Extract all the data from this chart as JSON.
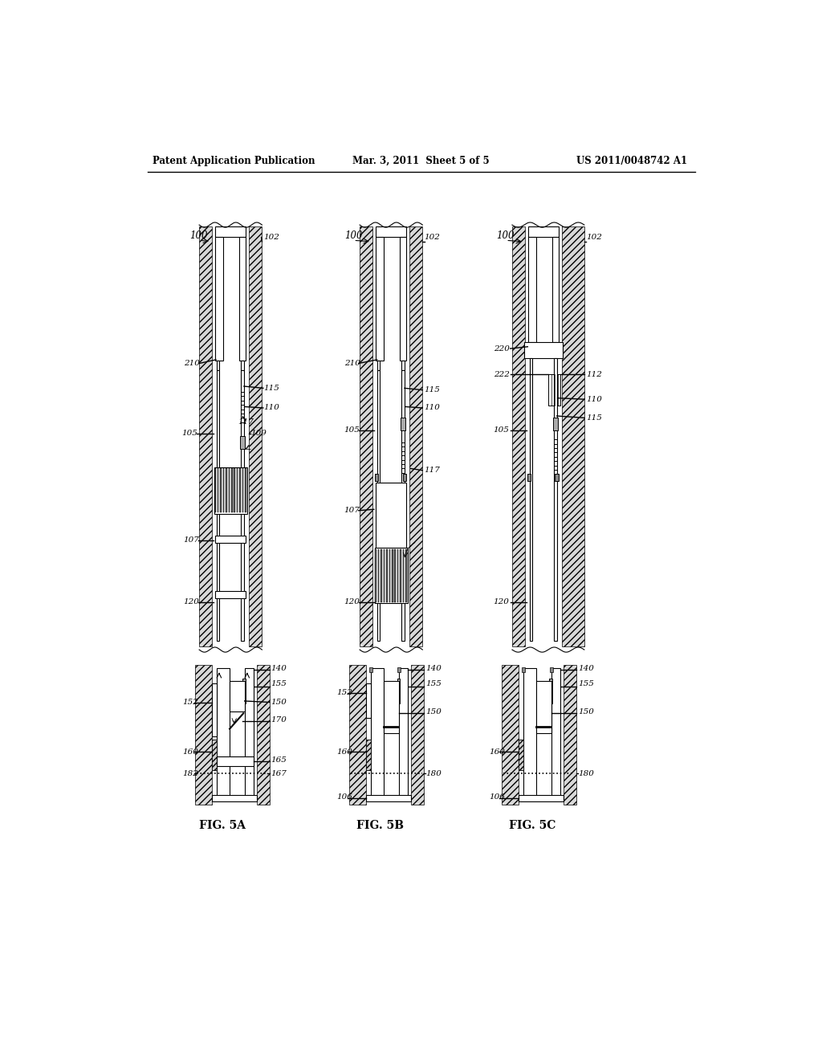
{
  "title_left": "Patent Application Publication",
  "title_center": "Mar. 3, 2011  Sheet 5 of 5",
  "title_right": "US 2011/0048742 A1",
  "background_color": "#ffffff"
}
